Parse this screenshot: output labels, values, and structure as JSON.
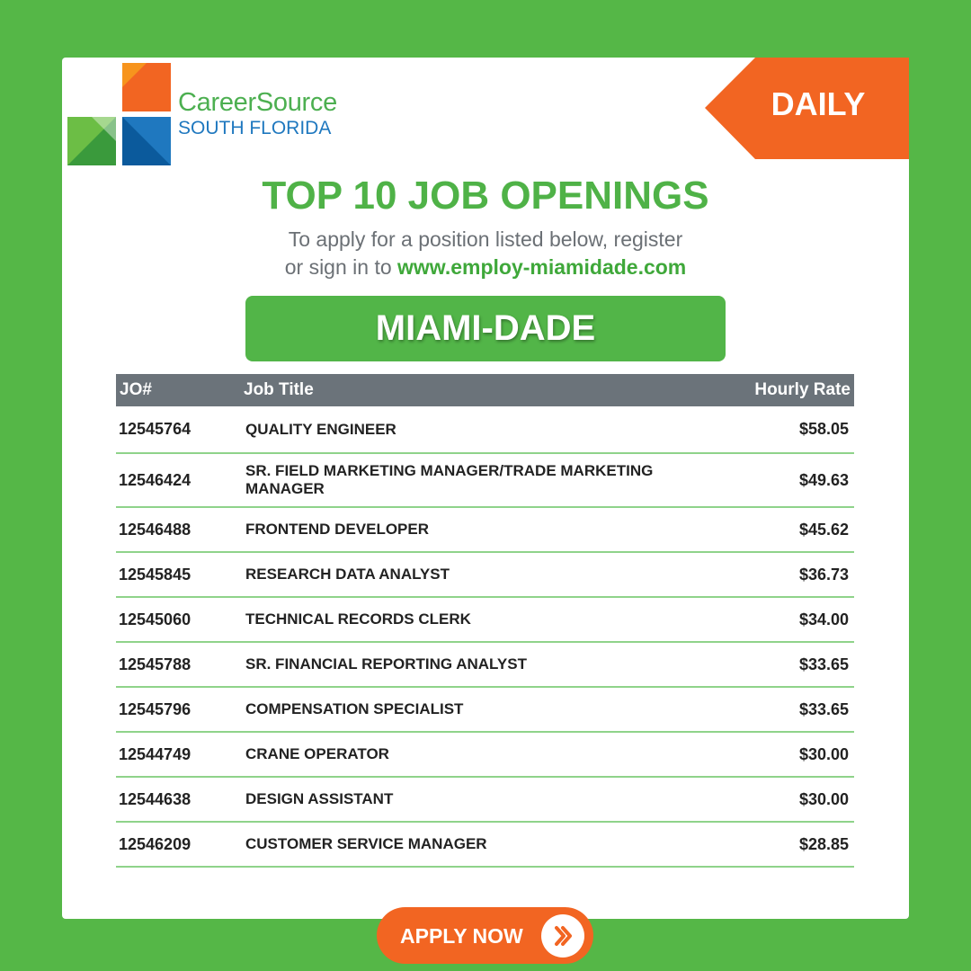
{
  "logo": {
    "name": "CareerSource",
    "region": "SOUTH FLORIDA"
  },
  "badge": "DAILY",
  "title": "TOP 10 JOB OPENINGS",
  "subtitle": {
    "line1": "To apply for a position listed below, register",
    "line2": "or sign in to",
    "link": "www.employ-miamidade.com"
  },
  "area": "MIAMI-DADE",
  "table": {
    "header": [
      "JO#",
      "Job Title",
      "Hourly Rate"
    ],
    "rows": [
      [
        "12545764",
        "QUALITY ENGINEER",
        "$58.05"
      ],
      [
        "12546424",
        "SR. FIELD MARKETING MANAGER/TRADE MARKETING MANAGER",
        "$49.63"
      ],
      [
        "12546488",
        "FRONTEND DEVELOPER",
        "$45.62"
      ],
      [
        "12545845",
        "RESEARCH DATA ANALYST",
        "$36.73"
      ],
      [
        "12545060",
        "TECHNICAL RECORDS CLERK",
        "$34.00"
      ],
      [
        "12545788",
        "SR. FINANCIAL REPORTING ANALYST",
        "$33.65"
      ],
      [
        "12545796",
        "COMPENSATION SPECIALIST",
        "$33.65"
      ],
      [
        "12544749",
        "CRANE OPERATOR",
        "$30.00"
      ],
      [
        "12544638",
        "DESIGN ASSISTANT",
        "$30.00"
      ],
      [
        "12546209",
        "CUSTOMER SERVICE MANAGER",
        "$28.85"
      ]
    ]
  },
  "button": "APPLY NOW"
}
